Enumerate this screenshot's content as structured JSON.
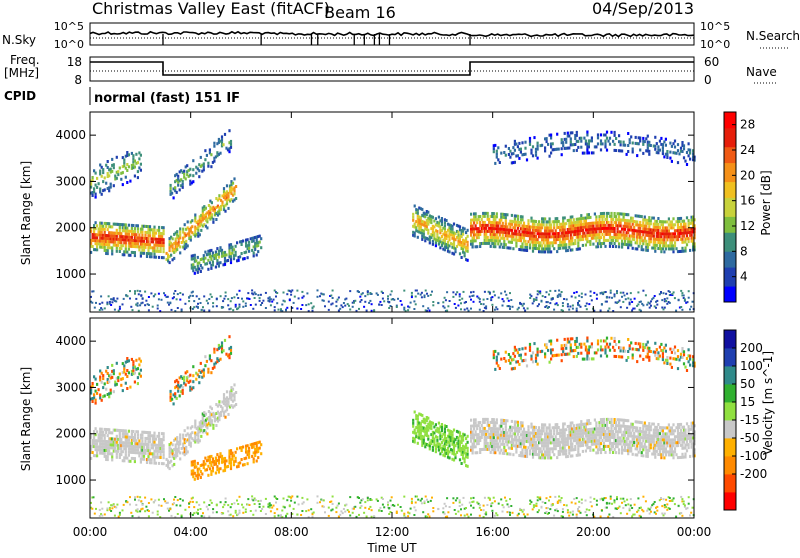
{
  "header": {
    "radar": "Christmas Valley East (fitACF)",
    "beam": "Beam 16",
    "date": "04/Sep/2013"
  },
  "noise_panel": {
    "left_label": "N.Sky",
    "left_ticks": [
      "10^5",
      "10^0"
    ],
    "right_label": "N.Search",
    "right_ticks": [
      "10^5",
      "10^0"
    ]
  },
  "freq_panel": {
    "left_label_1": "Freq.",
    "left_label_2": "[MHz]",
    "left_ticks": [
      "18",
      "8"
    ],
    "right_label": "Nave",
    "right_ticks": [
      "60",
      "0"
    ]
  },
  "cpid": {
    "label": "CPID",
    "mode": "normal (fast) 151 IF"
  },
  "x_axis": {
    "label": "Time UT",
    "ticks": [
      "00:00",
      "04:00",
      "08:00",
      "12:00",
      "16:00",
      "20:00",
      "00:00"
    ]
  },
  "colors": {
    "power": [
      "#0000ff",
      "#1f3fb0",
      "#2e6aa0",
      "#3d8f7a",
      "#7fbf3f",
      "#c8d23c",
      "#f0c020",
      "#f59018",
      "#f05a14",
      "#e61e0a",
      "#ff0000"
    ],
    "velocity": [
      "#ff0000",
      "#ff4a00",
      "#ff8a00",
      "#ffb000",
      "#c8c8c8",
      "#90e040",
      "#30b030",
      "#2f8a8a",
      "#1f3fb0",
      "#1010a0"
    ]
  },
  "chart_data": [
    {
      "type": "heatmap",
      "title": "Power",
      "ylabel": "Slant Range [km]",
      "xlabel": "",
      "xlim": [
        0,
        24
      ],
      "ylim": [
        180,
        4500
      ],
      "yticks": [
        "1000",
        "2000",
        "3000",
        "4000"
      ],
      "colorbar_label": "Power [dB]",
      "colorbar_ticks": [
        "4",
        "8",
        "12",
        "16",
        "20",
        "24",
        "28"
      ],
      "colorbar_range": [
        0,
        30
      ]
    },
    {
      "type": "heatmap",
      "title": "Velocity",
      "ylabel": "Slant Range [km]",
      "xlabel": "Time UT",
      "xlim": [
        0,
        24
      ],
      "ylim": [
        180,
        4500
      ],
      "yticks": [
        "1000",
        "2000",
        "3000",
        "4000"
      ],
      "colorbar_label": "Velocity [m s^-1]",
      "colorbar_ticks": [
        "200",
        "100",
        "50",
        "15",
        "-15",
        "-50",
        "-100",
        "-200"
      ],
      "colorbar_range": [
        -250,
        250
      ]
    }
  ]
}
